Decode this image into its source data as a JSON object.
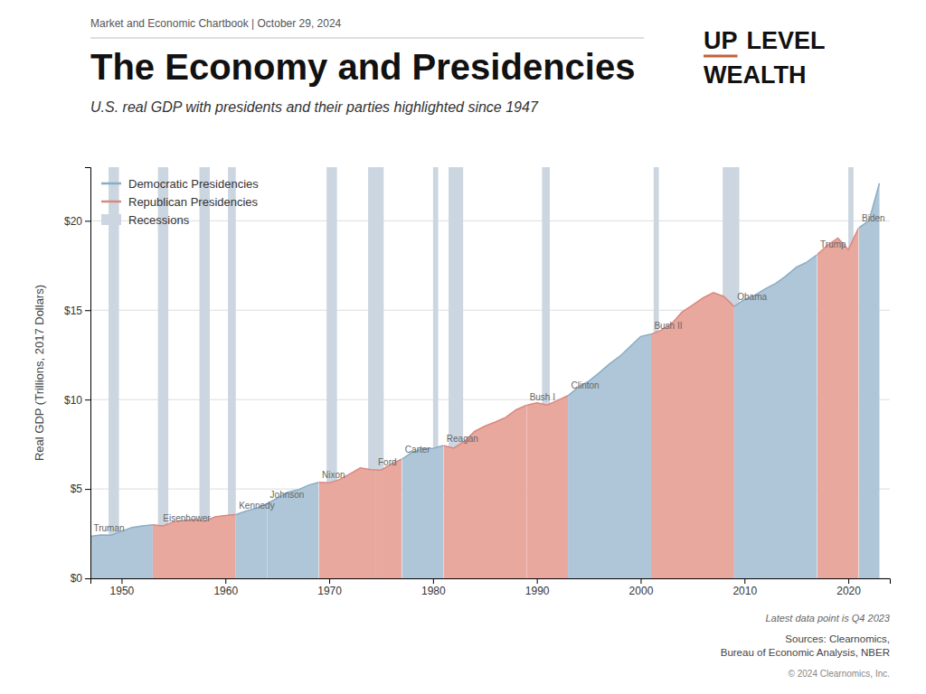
{
  "chart_data": {
    "type": "area",
    "header": "Market and Economic Chartbook | October 29, 2024",
    "title": "The Economy and Presidencies",
    "subtitle": "U.S. real GDP with presidents and their parties highlighted since 1947",
    "logo": [
      "UP",
      "LEVEL",
      "WEALTH"
    ],
    "ylabel": "Real GDP (Trillions, 2017 Dollars)",
    "annotations": [
      "Latest data point is Q4 2023",
      "Sources: Clearnomics,\nBureau of Economic Analysis, NBER",
      "© 2024 Clearnomics, Inc."
    ],
    "x": [
      1947,
      1948,
      1949,
      1950,
      1951,
      1952,
      1953,
      1954,
      1955,
      1956,
      1957,
      1958,
      1959,
      1960,
      1961,
      1962,
      1963,
      1964,
      1965,
      1966,
      1967,
      1968,
      1969,
      1970,
      1971,
      1972,
      1973,
      1974,
      1975,
      1976,
      1977,
      1978,
      1979,
      1980,
      1981,
      1982,
      1983,
      1984,
      1985,
      1986,
      1987,
      1988,
      1989,
      1990,
      1991,
      1992,
      1993,
      1994,
      1995,
      1996,
      1997,
      1998,
      1999,
      2000,
      2001,
      2002,
      2003,
      2004,
      2005,
      2006,
      2007,
      2008,
      2009,
      2010,
      2011,
      2012,
      2013,
      2014,
      2015,
      2016,
      2017,
      2018,
      2019,
      2020,
      2021,
      2022,
      2023
    ],
    "values": [
      2.356,
      2.432,
      2.419,
      2.633,
      2.84,
      2.928,
      2.998,
      2.937,
      3.165,
      3.236,
      3.29,
      3.2,
      3.44,
      3.514,
      3.568,
      3.764,
      3.924,
      4.172,
      4.487,
      4.813,
      4.949,
      5.215,
      5.37,
      5.34,
      5.527,
      5.846,
      6.177,
      6.081,
      6.055,
      6.4,
      6.672,
      7.052,
      7.269,
      7.265,
      7.434,
      7.285,
      7.66,
      8.215,
      8.517,
      8.745,
      9.006,
      9.427,
      9.68,
      9.822,
      9.697,
      9.95,
      10.221,
      10.699,
      11.028,
      11.496,
      12.001,
      12.425,
      12.978,
      13.528,
      13.656,
      13.882,
      14.257,
      14.904,
      15.282,
      15.685,
      15.985,
      15.772,
      15.209,
      15.598,
      15.84,
      16.197,
      16.495,
      16.912,
      17.404,
      17.689,
      18.108,
      18.638,
      19.032,
      18.384,
      19.611,
      20.015,
      22.1
    ],
    "parties": [
      {
        "party": "D",
        "name": "Democratic Presidencies",
        "color": "#8badc4",
        "fill": "#aec6d8"
      },
      {
        "party": "R",
        "name": "Republican Presidencies",
        "color": "#d98880",
        "fill": "#e8a89e"
      }
    ],
    "presidents": [
      {
        "label": "Truman",
        "party": "D",
        "start": 1947.0,
        "end": 1953.0,
        "label_x": 1947.3
      },
      {
        "label": "Eisenhower",
        "party": "R",
        "start": 1953.0,
        "end": 1961.0,
        "label_x": 1954.0
      },
      {
        "label": "Kennedy",
        "party": "D",
        "start": 1961.0,
        "end": 1964.0,
        "label_x": 1961.3
      },
      {
        "label": "Johnson",
        "party": "D",
        "start": 1964.0,
        "end": 1969.0,
        "label_x": 1964.3
      },
      {
        "label": "Nixon",
        "party": "R",
        "start": 1969.0,
        "end": 1974.5,
        "label_x": 1969.3
      },
      {
        "label": "Ford",
        "party": "R",
        "start": 1974.5,
        "end": 1977.0,
        "label_x": 1974.7
      },
      {
        "label": "Carter",
        "party": "D",
        "start": 1977.0,
        "end": 1981.0,
        "label_x": 1977.3
      },
      {
        "label": "Reagan",
        "party": "R",
        "start": 1981.0,
        "end": 1989.0,
        "label_x": 1981.3
      },
      {
        "label": "Bush I",
        "party": "R",
        "start": 1989.0,
        "end": 1993.0,
        "label_x": 1989.3
      },
      {
        "label": "Clinton",
        "party": "D",
        "start": 1993.0,
        "end": 2001.0,
        "label_x": 1993.3
      },
      {
        "label": "Bush II",
        "party": "R",
        "start": 2001.0,
        "end": 2009.0,
        "label_x": 2001.3
      },
      {
        "label": "Obama",
        "party": "D",
        "start": 2009.0,
        "end": 2017.0,
        "label_x": 2009.3
      },
      {
        "label": "Trump",
        "party": "R",
        "start": 2017.0,
        "end": 2021.0,
        "label_x": 2017.3
      },
      {
        "label": "Biden",
        "party": "D",
        "start": 2021.0,
        "end": 2024.0,
        "label_x": 2021.3
      }
    ],
    "recessions": {
      "name": "Recessions",
      "color": "#ccd6e0",
      "periods": [
        {
          "start": 1948.75,
          "end": 1949.75
        },
        {
          "start": 1953.5,
          "end": 1954.5
        },
        {
          "start": 1957.5,
          "end": 1958.5
        },
        {
          "start": 1960.25,
          "end": 1961.0
        },
        {
          "start": 1969.75,
          "end": 1970.75
        },
        {
          "start": 1973.75,
          "end": 1975.25
        },
        {
          "start": 1980.0,
          "end": 1980.5
        },
        {
          "start": 1981.5,
          "end": 1982.9
        },
        {
          "start": 1990.5,
          "end": 1991.25
        },
        {
          "start": 2001.25,
          "end": 2001.75
        },
        {
          "start": 2007.9,
          "end": 2009.5
        },
        {
          "start": 2020.0,
          "end": 2020.5
        }
      ]
    },
    "xlim": [
      1947,
      2024
    ],
    "xticks": [
      1950,
      1960,
      1970,
      1980,
      1990,
      2000,
      2010,
      2020
    ],
    "ylim": [
      0,
      23
    ],
    "yticks": [
      {
        "value": 0,
        "label": "$0"
      },
      {
        "value": 5,
        "label": "$5"
      },
      {
        "value": 10,
        "label": "$10"
      },
      {
        "value": 15,
        "label": "$15"
      },
      {
        "value": 20,
        "label": "$20"
      }
    ],
    "grid": true,
    "legend": "upper left"
  }
}
